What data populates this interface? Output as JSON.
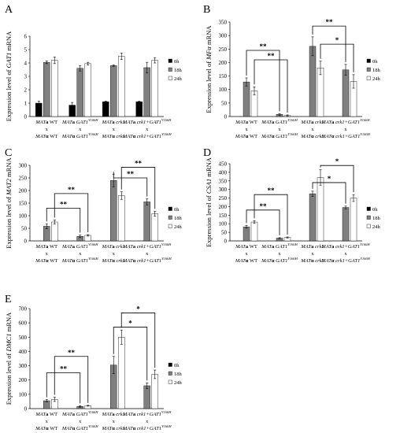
{
  "colors": {
    "0h": "#000000",
    "18h": "#7f7f7f",
    "24h": "#ffffff",
    "stroke": "#000000"
  },
  "chart_data": [
    {
      "panel": "A",
      "type": "bar",
      "ylabel_pre": "Expression level of ",
      "ylabel_gene": "GAT1",
      "ylabel_post": " mRNA",
      "ylim": [
        0,
        6
      ],
      "yticks": [
        0,
        1,
        2,
        3,
        4,
        5,
        6
      ],
      "legend": [
        "0h",
        "18h",
        "24h"
      ],
      "categories": [
        [
          "MATa WT",
          "x",
          "MATα WT"
        ],
        [
          "MATa GAT1Y166H",
          "x",
          "MATα GAT1Y166H"
        ],
        [
          "MATa crk1",
          "x",
          "MATα crk1"
        ],
        [
          "MATa crk1+GAT1Y166H",
          "x",
          "MATα crk1+GAT1Y166H"
        ]
      ],
      "series": [
        {
          "name": "0h",
          "values": [
            1.0,
            0.85,
            1.1,
            1.1
          ],
          "err": [
            0.15,
            0.2,
            0.05,
            0.05
          ]
        },
        {
          "name": "18h",
          "values": [
            4.05,
            3.6,
            3.8,
            3.65
          ],
          "err": [
            0.1,
            0.2,
            0.05,
            0.4
          ]
        },
        {
          "name": "24h",
          "values": [
            4.2,
            3.95,
            4.5,
            4.2
          ],
          "err": [
            0.25,
            0.1,
            0.25,
            0.2
          ]
        }
      ],
      "significance": []
    },
    {
      "panel": "B",
      "type": "bar",
      "ylabel_pre": "Expression level of ",
      "ylabel_gene": "MFα",
      "ylabel_post": " mRNA",
      "ylim": [
        0,
        350
      ],
      "yticks": [
        0,
        50,
        100,
        150,
        200,
        250,
        300,
        350
      ],
      "legend": [
        "0h",
        "18h",
        "24h"
      ],
      "categories": [
        [
          "MATa WT",
          "x",
          "MATα WT"
        ],
        [
          "MATa GAT1Y166H",
          "x",
          "MATα GAT1Y166H"
        ],
        [
          "MATa crk1",
          "x",
          "MATα crk1"
        ],
        [
          "MATa crk1+GAT1Y166H",
          "x",
          "MATα crk1+GAT1Y166H"
        ]
      ],
      "series": [
        {
          "name": "0h",
          "values": [
            0,
            0,
            0,
            0
          ],
          "err": [
            0,
            0,
            0,
            0
          ]
        },
        {
          "name": "18h",
          "values": [
            128,
            8,
            260,
            173
          ],
          "err": [
            15,
            3,
            35,
            20
          ]
        },
        {
          "name": "24h",
          "values": [
            95,
            4,
            180,
            130
          ],
          "err": [
            15,
            2,
            25,
            25
          ]
        }
      ],
      "significance": [
        {
          "from": [
            0,
            1
          ],
          "to": [
            1,
            1
          ],
          "y": 245,
          "label": "**"
        },
        {
          "from": [
            0,
            2
          ],
          "to": [
            1,
            2
          ],
          "y": 210,
          "label": "**"
        },
        {
          "from": [
            2,
            1
          ],
          "to": [
            3,
            1
          ],
          "y": 335,
          "label": "**"
        },
        {
          "from": [
            2,
            2
          ],
          "to": [
            3,
            2
          ],
          "y": 268,
          "label": "*"
        }
      ]
    },
    {
      "panel": "C",
      "type": "bar",
      "ylabel_pre": "Expression level of ",
      "ylabel_gene": "MAT2",
      "ylabel_post": " mRNA",
      "ylim": [
        0,
        300
      ],
      "yticks": [
        0,
        50,
        100,
        150,
        200,
        250,
        300
      ],
      "legend": [
        "0h",
        "18h",
        "24h"
      ],
      "categories": [
        [
          "MATa WT",
          "x",
          "MATα WT"
        ],
        [
          "MATa GAT1Y166H",
          "x",
          "MATα GAT1Y166H"
        ],
        [
          "MATa crk1",
          "x",
          "MATα crk1"
        ],
        [
          "MATa crk1+GAT1Y166H",
          "x",
          "MATα crk1+GAT1Y166H"
        ]
      ],
      "series": [
        {
          "name": "0h",
          "values": [
            0,
            0,
            0,
            0
          ],
          "err": [
            0,
            0,
            0,
            0
          ]
        },
        {
          "name": "18h",
          "values": [
            58,
            18,
            240,
            155
          ],
          "err": [
            10,
            5,
            25,
            12
          ]
        },
        {
          "name": "24h",
          "values": [
            75,
            22,
            180,
            108
          ],
          "err": [
            8,
            3,
            15,
            10
          ]
        }
      ],
      "significance": [
        {
          "from": [
            0,
            1
          ],
          "to": [
            1,
            1
          ],
          "y": 130,
          "label": "**"
        },
        {
          "from": [
            0,
            2
          ],
          "to": [
            1,
            2
          ],
          "y": 188,
          "label": "**"
        },
        {
          "from": [
            2,
            1
          ],
          "to": [
            3,
            1
          ],
          "y": 250,
          "label": "**"
        },
        {
          "from": [
            2,
            2
          ],
          "to": [
            3,
            2
          ],
          "y": 292,
          "label": "**"
        }
      ]
    },
    {
      "panel": "D",
      "type": "bar",
      "ylabel_pre": "Expression level of ",
      "ylabel_gene": "CSA1",
      "ylabel_post": " mRNA",
      "ylim": [
        0,
        450
      ],
      "yticks": [
        0,
        50,
        100,
        150,
        200,
        250,
        300,
        350,
        400,
        450
      ],
      "legend": [
        "0h",
        "18h",
        "24h"
      ],
      "categories": [
        [
          "MATa WT",
          "x",
          "MATα WT"
        ],
        [
          "MATa GAT1Y166H",
          "x",
          "MATα GAT1Y166H"
        ],
        [
          "MATa crk1",
          "x",
          "MATα crk1"
        ],
        [
          "MATa crk1+GAT1Y166H",
          "x",
          "MATα crk1+GAT1Y166H"
        ]
      ],
      "series": [
        {
          "name": "0h",
          "values": [
            0,
            0,
            0,
            0
          ],
          "err": [
            0,
            0,
            0,
            0
          ]
        },
        {
          "name": "18h",
          "values": [
            82,
            16,
            275,
            195
          ],
          "err": [
            8,
            3,
            15,
            8
          ]
        },
        {
          "name": "24h",
          "values": [
            110,
            20,
            370,
            250
          ],
          "err": [
            8,
            3,
            45,
            20
          ]
        }
      ],
      "significance": [
        {
          "from": [
            0,
            1
          ],
          "to": [
            1,
            1
          ],
          "y": 180,
          "label": "**"
        },
        {
          "from": [
            0,
            2
          ],
          "to": [
            1,
            2
          ],
          "y": 270,
          "label": "**"
        },
        {
          "from": [
            2,
            1
          ],
          "to": [
            3,
            1
          ],
          "y": 340,
          "label": "*"
        },
        {
          "from": [
            2,
            2
          ],
          "to": [
            3,
            2
          ],
          "y": 440,
          "label": "*"
        }
      ]
    },
    {
      "panel": "E",
      "type": "bar",
      "ylabel_pre": "Expression level of ",
      "ylabel_gene": "DMC1",
      "ylabel_post": " mRNA",
      "ylim": [
        0,
        700
      ],
      "yticks": [
        0,
        100,
        200,
        300,
        400,
        500,
        600,
        700
      ],
      "legend": [
        "0h",
        "18h",
        "24h"
      ],
      "categories": [
        [
          "MATa WT",
          "x",
          "MATα WT"
        ],
        [
          "MATa GAT1Y166H",
          "x",
          "MATα GAT1Y166H"
        ],
        [
          "MATa crk1",
          "x",
          "MATα crk1"
        ],
        [
          "MATa crk1+GAT1Y166H",
          "x",
          "MATα crk1+GAT1Y166H"
        ]
      ],
      "series": [
        {
          "name": "0h",
          "values": [
            0,
            0,
            0,
            0
          ],
          "err": [
            0,
            0,
            0,
            0
          ]
        },
        {
          "name": "18h",
          "values": [
            55,
            15,
            305,
            160
          ],
          "err": [
            8,
            5,
            60,
            20
          ]
        },
        {
          "name": "24h",
          "values": [
            65,
            20,
            500,
            240
          ],
          "err": [
            15,
            3,
            50,
            30
          ]
        }
      ],
      "significance": [
        {
          "from": [
            0,
            1
          ],
          "to": [
            1,
            1
          ],
          "y": 250,
          "label": "**"
        },
        {
          "from": [
            0,
            2
          ],
          "to": [
            1,
            2
          ],
          "y": 365,
          "label": "**"
        },
        {
          "from": [
            2,
            1
          ],
          "to": [
            3,
            1
          ],
          "y": 570,
          "label": "*"
        },
        {
          "from": [
            2,
            2
          ],
          "to": [
            3,
            2
          ],
          "y": 670,
          "label": "*"
        }
      ]
    }
  ]
}
